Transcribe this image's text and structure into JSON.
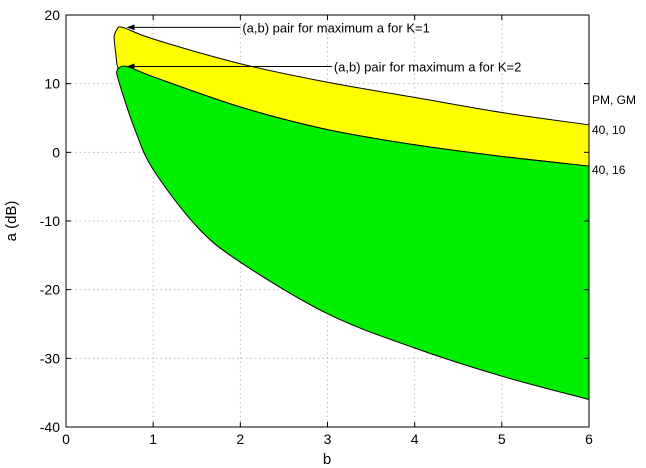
{
  "chart_data": {
    "type": "area",
    "xlabel": "b",
    "ylabel": "a (dB)",
    "xlim": [
      0,
      6
    ],
    "ylim": [
      -40,
      20
    ],
    "xticks": [
      "0",
      "1",
      "2",
      "3",
      "4",
      "5",
      "6"
    ],
    "yticks": [
      "20",
      "10",
      "0",
      "-10",
      "-20",
      "-30",
      "-40"
    ],
    "xtick_values": [
      0,
      1,
      2,
      3,
      4,
      5,
      6
    ],
    "ytick_values": [
      20,
      10,
      0,
      -10,
      -20,
      -30,
      -40
    ],
    "grid": true,
    "series": [
      {
        "label": "40, 10",
        "color": "#ffff00",
        "upper": [
          [
            0.55,
            16.8
          ],
          [
            0.58,
            17.8
          ],
          [
            0.65,
            18.2
          ],
          [
            1,
            16.5
          ],
          [
            2,
            12.9
          ],
          [
            3,
            10.2
          ],
          [
            4,
            8.0
          ],
          [
            5,
            5.8
          ],
          [
            6,
            4.0
          ]
        ],
        "lower": [
          [
            0.55,
            16.8
          ],
          [
            0.57,
            14.5
          ],
          [
            0.6,
            12.2
          ],
          [
            0.7,
            12.5
          ],
          [
            1,
            11.0
          ],
          [
            2,
            6.6
          ],
          [
            3,
            3.3
          ],
          [
            4,
            1.1
          ],
          [
            5,
            -0.6
          ],
          [
            6,
            -2.0
          ]
        ]
      },
      {
        "label": "40, 16",
        "color": "#00ee00",
        "upper": [
          [
            0.58,
            11.5
          ],
          [
            0.6,
            12.2
          ],
          [
            0.7,
            12.5
          ],
          [
            1,
            11.0
          ],
          [
            2,
            6.6
          ],
          [
            3,
            3.3
          ],
          [
            4,
            1.1
          ],
          [
            5,
            -0.6
          ],
          [
            6,
            -2.0
          ]
        ],
        "lower": [
          [
            0.58,
            11.5
          ],
          [
            0.65,
            8.5
          ],
          [
            0.8,
            3.0
          ],
          [
            1,
            -2.5
          ],
          [
            1.5,
            -10.8
          ],
          [
            2,
            -16.0
          ],
          [
            3,
            -23.5
          ],
          [
            4,
            -28.5
          ],
          [
            5,
            -32.6
          ],
          [
            6,
            -36.0
          ]
        ]
      }
    ],
    "legend_header": "PM, GM",
    "annotations": [
      {
        "text": "(a,b) pair for maximum a for K=1",
        "point": [
          0.65,
          18.2
        ]
      },
      {
        "text": "(a,b) pair for maximum a for K=2",
        "point": [
          0.65,
          12.5
        ]
      }
    ]
  }
}
